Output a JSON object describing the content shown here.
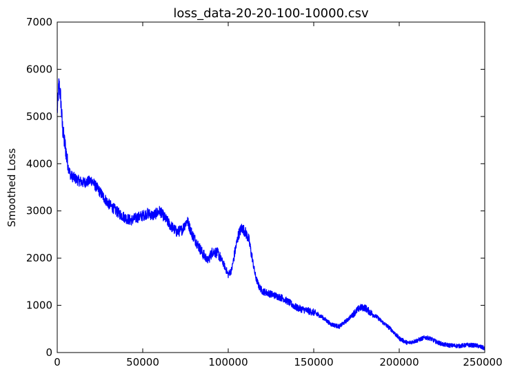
{
  "chart_data": {
    "type": "line",
    "title": "loss_data-20-20-100-10000.csv",
    "xlabel": "",
    "ylabel": "Smoothed Loss",
    "xlim": [
      0,
      250000
    ],
    "ylim": [
      0,
      7000
    ],
    "xticks": [
      0,
      50000,
      100000,
      150000,
      200000,
      250000
    ],
    "xtick_labels": [
      "0",
      "50000",
      "100000",
      "150000",
      "200000",
      "250000"
    ],
    "yticks": [
      0,
      1000,
      2000,
      3000,
      4000,
      5000,
      6000,
      7000
    ],
    "ytick_labels": [
      "0",
      "1000",
      "2000",
      "3000",
      "4000",
      "5000",
      "6000",
      "7000"
    ],
    "grid": false,
    "line_color": "#0000ff",
    "series": [
      {
        "x": [
          0,
          1000,
          2000,
          3000,
          4000,
          5000,
          6000,
          7000,
          8000,
          10000,
          12000,
          15000,
          18000,
          20000,
          22000,
          25000,
          28000,
          30000,
          33000,
          36000,
          40000,
          43000,
          46000,
          50000,
          53000,
          56000,
          60000,
          63000,
          66000,
          70000,
          73000,
          76000,
          79000,
          82000,
          85000,
          88000,
          91000,
          94000,
          97000,
          100000,
          102000,
          104000,
          106000,
          108000,
          110000,
          112000,
          114000,
          116000,
          118000,
          120000,
          124000,
          128000,
          132000,
          136000,
          140000,
          145000,
          150000,
          155000,
          160000,
          165000,
          170000,
          174000,
          177000,
          180000,
          183000,
          187000,
          190000,
          195000,
          200000,
          205000,
          210000,
          215000,
          218000,
          222000,
          226000,
          230000,
          235000,
          240000,
          245000,
          250000
        ],
        "y": [
          5100,
          5700,
          5400,
          4800,
          4500,
          4300,
          4000,
          3850,
          3750,
          3700,
          3650,
          3600,
          3620,
          3650,
          3550,
          3400,
          3250,
          3150,
          3050,
          2950,
          2850,
          2800,
          2850,
          2900,
          2950,
          2900,
          3000,
          2850,
          2700,
          2550,
          2600,
          2800,
          2500,
          2300,
          2100,
          1950,
          2150,
          2100,
          1900,
          1650,
          1750,
          2150,
          2500,
          2650,
          2550,
          2400,
          2000,
          1600,
          1400,
          1300,
          1250,
          1200,
          1150,
          1050,
          950,
          900,
          850,
          750,
          600,
          550,
          700,
          850,
          950,
          950,
          850,
          750,
          650,
          500,
          300,
          200,
          250,
          320,
          300,
          220,
          170,
          150,
          140,
          160,
          150,
          90
        ]
      }
    ]
  }
}
